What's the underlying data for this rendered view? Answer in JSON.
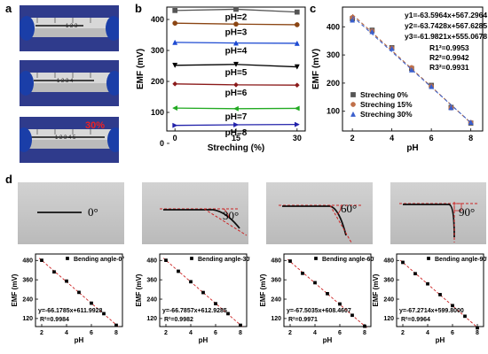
{
  "panels": {
    "a": "a",
    "b": "b",
    "c": "c",
    "d": "d"
  },
  "photo_strain_labels": [
    "30%"
  ],
  "bend_angle_labels": [
    "0°",
    "30°",
    "60°",
    "90°"
  ],
  "colors": {
    "black": "#000000",
    "brown": "#8B4513",
    "blue": "#1e4bd2",
    "pink": "#cc3399",
    "green": "#22aa22",
    "navy": "#2222aa",
    "fit": "#cc2222",
    "gray": "#555555"
  },
  "chart_data": [
    {
      "id": "b",
      "type": "line",
      "xlabel": "Streching (%)",
      "ylabel": "EMF (mV)",
      "x": [
        0,
        15,
        30
      ],
      "xticks": [
        0,
        15,
        30
      ],
      "yticks": [
        0,
        100,
        200,
        300,
        400
      ],
      "xlim": [
        -2,
        32
      ],
      "ylim": [
        40,
        440
      ],
      "series": [
        {
          "name": "pH=2",
          "values": [
            429,
            433,
            424
          ],
          "color": "#555555",
          "marker": "square"
        },
        {
          "name": "pH=3",
          "values": [
            388,
            385,
            383
          ],
          "color": "#8B4513",
          "marker": "circle"
        },
        {
          "name": "pH=4",
          "values": [
            326,
            324,
            323
          ],
          "color": "#1e4bd2",
          "marker": "triangle"
        },
        {
          "name": "pH=5",
          "values": [
            252,
            255,
            247
          ],
          "color": "#000000",
          "marker": "triangle-down"
        },
        {
          "name": "pH=6",
          "values": [
            192,
            189,
            188
          ],
          "color": "#8B1a1a",
          "marker": "diamond"
        },
        {
          "name": "pH=7",
          "values": [
            114,
            112,
            113
          ],
          "color": "#22aa22",
          "marker": "triangle-left"
        },
        {
          "name": "pH=8",
          "values": [
            58,
            60,
            61
          ],
          "color": "#2222aa",
          "marker": "triangle-right"
        }
      ]
    },
    {
      "id": "c",
      "type": "scatter",
      "xlabel": "pH",
      "ylabel": "EMF (mV)",
      "xticks": [
        2,
        4,
        6,
        8
      ],
      "yticks": [
        100,
        200,
        300,
        400
      ],
      "xlim": [
        1.5,
        8.6
      ],
      "ylim": [
        30,
        470
      ],
      "equations": [
        "y1=-63.5964x+567.2964",
        "y2=-63.7428x+567.6285",
        "y3=-61.9821x+555.0678"
      ],
      "r2": [
        "R1²=0.9953",
        "R2²=0.9942",
        "R3²=0.9931"
      ],
      "series": [
        {
          "name": "Streching 0%",
          "color": "#555555",
          "marker": "square",
          "x": [
            2,
            3,
            4,
            5,
            6,
            7,
            8
          ],
          "values": [
            429,
            388,
            326,
            252,
            192,
            114,
            58
          ]
        },
        {
          "name": "Streching 15%",
          "color": "#c0704a",
          "marker": "circle",
          "x": [
            2,
            3,
            4,
            5,
            6,
            7,
            8
          ],
          "values": [
            433,
            385,
            324,
            255,
            189,
            112,
            60
          ]
        },
        {
          "name": "Streching 30%",
          "color": "#3a5fcd",
          "marker": "triangle",
          "x": [
            2,
            3,
            4,
            5,
            6,
            7,
            8
          ],
          "values": [
            424,
            383,
            323,
            247,
            188,
            113,
            61
          ]
        }
      ]
    },
    {
      "id": "d1",
      "type": "scatter",
      "xlabel": "pH",
      "ylabel": "EMF (mV)",
      "xticks": [
        2,
        4,
        6,
        8
      ],
      "yticks": [
        120,
        240,
        360,
        480
      ],
      "xlim": [
        1.5,
        8.5
      ],
      "ylim": [
        70,
        520
      ],
      "legend": "Bending angle-0°",
      "equation": "y=-66.1785x+611.9928",
      "r2": "R²=0.9984",
      "x": [
        2,
        3,
        4,
        5,
        6,
        7,
        8
      ],
      "values": [
        481,
        409,
        352,
        282,
        215,
        150,
        78
      ]
    },
    {
      "id": "d2",
      "type": "scatter",
      "xlabel": "pH",
      "ylabel": "EMF (mV)",
      "xticks": [
        2,
        4,
        6,
        8
      ],
      "yticks": [
        120,
        240,
        360,
        480
      ],
      "xlim": [
        1.5,
        8.5
      ],
      "ylim": [
        70,
        520
      ],
      "legend": "Bending angle-30°",
      "equation": "y=-66.7857x+612.9285",
      "r2": "R²=0.9982",
      "x": [
        2,
        3,
        4,
        5,
        6,
        7,
        8
      ],
      "values": [
        481,
        413,
        348,
        281,
        212,
        150,
        78
      ]
    },
    {
      "id": "d3",
      "type": "scatter",
      "xlabel": "pH",
      "ylabel": "EMF (mV)",
      "xticks": [
        2,
        4,
        6,
        8
      ],
      "yticks": [
        120,
        240,
        360,
        480
      ],
      "xlim": [
        1.5,
        8.5
      ],
      "ylim": [
        70,
        520
      ],
      "legend": "Bending angle-60°",
      "equation": "y=-67.5035x+608.4607",
      "r2": "R²=0.9971",
      "x": [
        2,
        3,
        4,
        5,
        6,
        7,
        8
      ],
      "values": [
        476,
        400,
        342,
        274,
        210,
        140,
        72
      ]
    },
    {
      "id": "d4",
      "type": "scatter",
      "xlabel": "pH",
      "ylabel": "EMF (mV)",
      "xticks": [
        2,
        4,
        6,
        8
      ],
      "yticks": [
        120,
        240,
        360,
        480
      ],
      "xlim": [
        1.5,
        8.5
      ],
      "ylim": [
        70,
        520
      ],
      "legend": "Bending angle-90°",
      "equation": "y=-67.2714x+599.8000",
      "r2": "R²=0.9964",
      "x": [
        2,
        3,
        4,
        5,
        6,
        7,
        8
      ],
      "values": [
        468,
        398,
        335,
        268,
        200,
        134,
        62
      ]
    }
  ]
}
